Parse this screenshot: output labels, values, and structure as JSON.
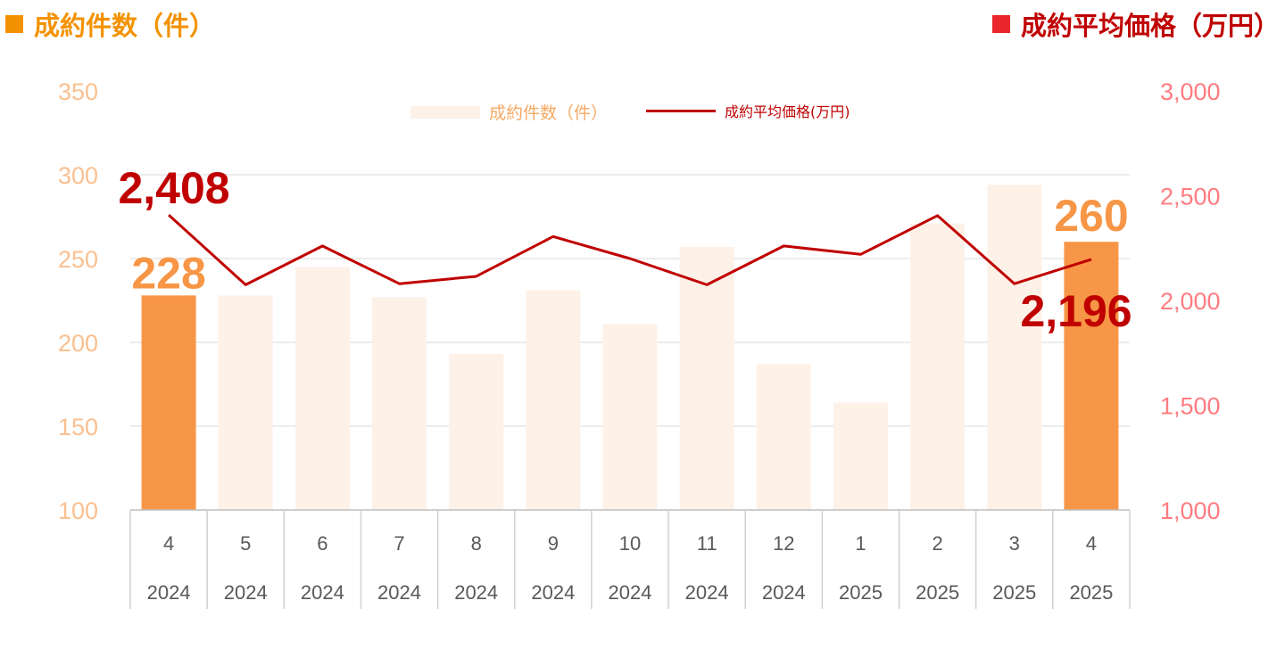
{
  "titles": {
    "left": "成約件数（件）",
    "right": "成約平均価格（万円）"
  },
  "legend": {
    "bars": "成約件数（件）",
    "line": "成約平均価格(万円)"
  },
  "colors": {
    "bar_highlight": "#F79646",
    "bar_muted": "#FDF1E8",
    "line": "#C00000",
    "left_axis": "#FAC090",
    "right_axis": "#FF7C80",
    "left_title": "#F39200",
    "right_title": "#C00000"
  },
  "chart_data": {
    "type": "bar",
    "categories": [
      {
        "month": "4",
        "year": "2024"
      },
      {
        "month": "5",
        "year": "2024"
      },
      {
        "month": "6",
        "year": "2024"
      },
      {
        "month": "7",
        "year": "2024"
      },
      {
        "month": "8",
        "year": "2024"
      },
      {
        "month": "9",
        "year": "2024"
      },
      {
        "month": "10",
        "year": "2024"
      },
      {
        "month": "11",
        "year": "2024"
      },
      {
        "month": "12",
        "year": "2024"
      },
      {
        "month": "1",
        "year": "2025"
      },
      {
        "month": "2",
        "year": "2025"
      },
      {
        "month": "3",
        "year": "2025"
      },
      {
        "month": "4",
        "year": "2025"
      }
    ],
    "series": [
      {
        "name": "成約件数（件）",
        "type": "bar",
        "axis": "left",
        "values": [
          228,
          228,
          245,
          227,
          193,
          231,
          211,
          257,
          187,
          164,
          271,
          294,
          260
        ],
        "highlight": [
          true,
          false,
          false,
          false,
          false,
          false,
          false,
          false,
          false,
          false,
          false,
          false,
          true
        ],
        "labels": {
          "0": "228",
          "12": "260"
        }
      },
      {
        "name": "成約平均価格(万円)",
        "type": "line",
        "axis": "right",
        "values": [
          2408,
          2075,
          2260,
          2080,
          2115,
          2305,
          2200,
          2075,
          2260,
          2220,
          2405,
          2080,
          2196
        ],
        "labels": {
          "0": "2,408",
          "12": "2,196"
        }
      }
    ],
    "y_left": {
      "min": 100,
      "max": 350,
      "ticks": [
        "100",
        "150",
        "200",
        "250",
        "300",
        "350"
      ]
    },
    "y_right": {
      "min": 1000,
      "max": 3000,
      "ticks": [
        "1,000",
        "1,500",
        "2,000",
        "2,500",
        "3,000"
      ]
    },
    "grid": true,
    "legend_position": "top-center"
  }
}
